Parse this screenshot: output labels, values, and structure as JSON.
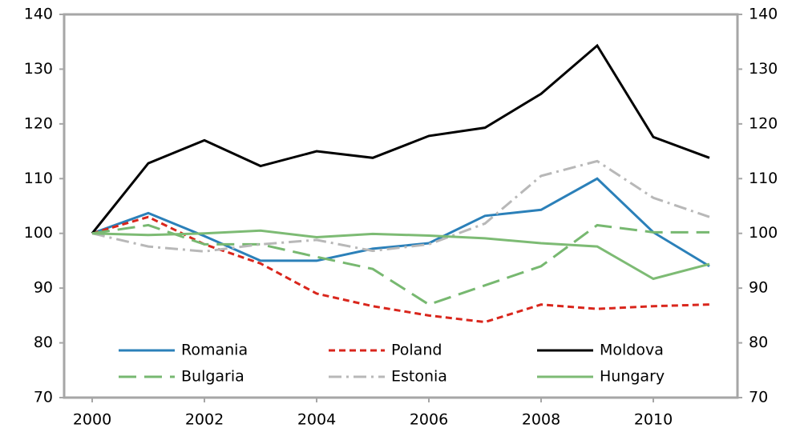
{
  "chart_data": {
    "type": "line",
    "x": [
      2000,
      2001,
      2002,
      2003,
      2004,
      2005,
      2006,
      2007,
      2008,
      2009,
      2010,
      2011
    ],
    "xlim": [
      1999.5,
      2011.5
    ],
    "xticks": [
      2000,
      2002,
      2004,
      2006,
      2008,
      2010
    ],
    "ylim": [
      70,
      140
    ],
    "yticks": [
      70,
      80,
      90,
      100,
      110,
      120,
      130,
      140
    ],
    "y2lim": [
      70,
      140
    ],
    "y2ticks": [
      70,
      80,
      90,
      100,
      110,
      120,
      130,
      140
    ],
    "grid": false,
    "legend": "bottom",
    "series": [
      {
        "name": "Romania",
        "color": "#2b80b9",
        "line_style": "solid",
        "values": [
          100,
          103.7,
          99.5,
          95,
          95,
          97.2,
          98.2,
          103.2,
          104.3,
          110,
          100.2,
          94
        ]
      },
      {
        "name": "Poland",
        "color": "#d9261c",
        "line_style": "dashed",
        "values": [
          100,
          103,
          98,
          94.5,
          89,
          86.7,
          85,
          83.8,
          87,
          86.2,
          86.7,
          87
        ]
      },
      {
        "name": "Moldova",
        "color": "#000000",
        "line_style": "solid",
        "values": [
          100,
          112.8,
          117,
          112.3,
          115,
          113.8,
          117.8,
          119.3,
          125.5,
          134.3,
          117.6,
          113.8
        ]
      },
      {
        "name": "Bulgaria",
        "color": "#77b870",
        "line_style": "long-dashed",
        "values": [
          100,
          101.5,
          98,
          98,
          95.7,
          93.5,
          87,
          90.5,
          94,
          101.5,
          100.2,
          100.2
        ]
      },
      {
        "name": "Estonia",
        "color": "#b8b8b8",
        "line_style": "dash-dot",
        "values": [
          100,
          97.6,
          96.7,
          98,
          98.8,
          96.8,
          98,
          101.8,
          110.5,
          113.2,
          106.5,
          103
        ]
      },
      {
        "name": "Hungary",
        "color": "#7dbb74",
        "line_style": "solid",
        "values": [
          100,
          99.7,
          100,
          100.5,
          99.3,
          99.9,
          99.6,
          99.1,
          98.2,
          97.6,
          91.7,
          94.4
        ]
      }
    ]
  }
}
